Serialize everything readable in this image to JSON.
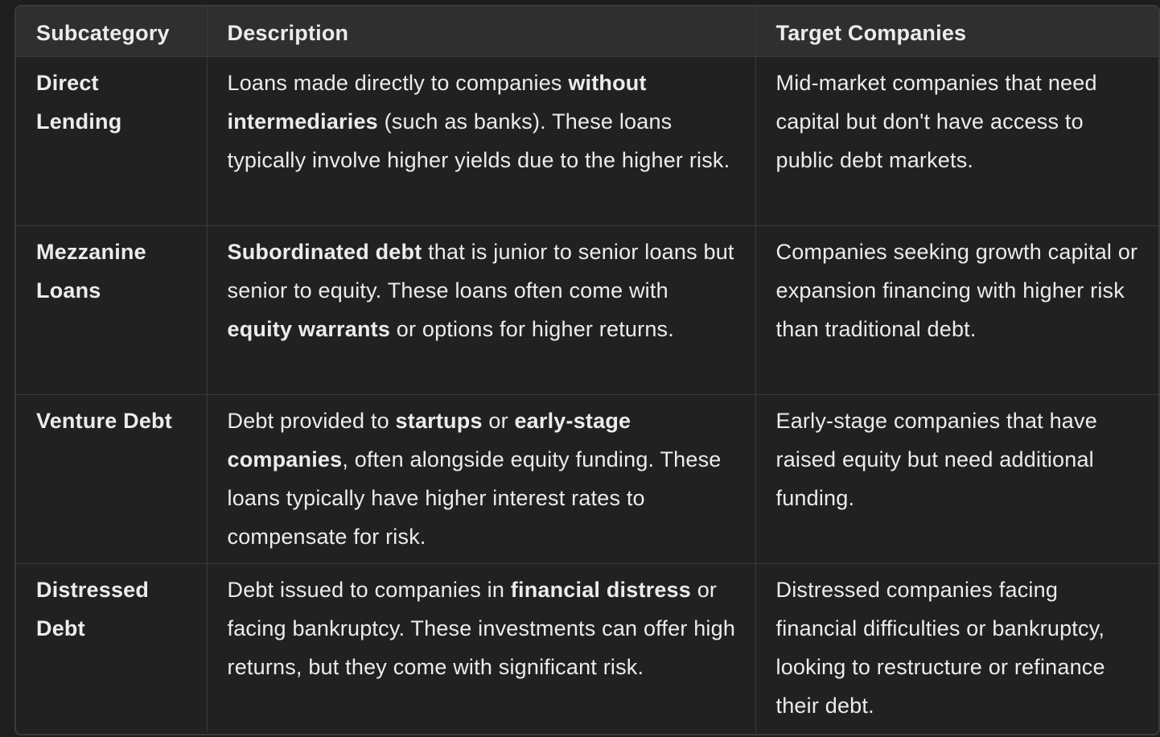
{
  "table": {
    "headers": [
      "Subcategory",
      "Description",
      "Target Companies"
    ],
    "rows": [
      {
        "subcategory": "Direct Lending",
        "description": [
          {
            "text": "Loans made directly to companies ",
            "bold": false
          },
          {
            "text": "without intermediaries",
            "bold": true
          },
          {
            "text": " (such as banks). These loans typically involve higher yields due to the higher risk.",
            "bold": false
          }
        ],
        "target": "Mid-market companies that need capital but don't have access to public debt markets."
      },
      {
        "subcategory": "Mezzanine Loans",
        "description": [
          {
            "text": "Subordinated debt",
            "bold": true
          },
          {
            "text": " that is junior to senior loans but senior to equity. These loans often come with ",
            "bold": false
          },
          {
            "text": "equity warrants",
            "bold": true
          },
          {
            "text": " or options for higher returns.",
            "bold": false
          }
        ],
        "target": "Companies seeking growth capital or expansion financing with higher risk than traditional debt."
      },
      {
        "subcategory": "Venture Debt",
        "description": [
          {
            "text": "Debt provided to ",
            "bold": false
          },
          {
            "text": "startups",
            "bold": true
          },
          {
            "text": " or ",
            "bold": false
          },
          {
            "text": "early-stage companies",
            "bold": true
          },
          {
            "text": ", often alongside equity funding. These loans typically have higher interest rates to compensate for risk.",
            "bold": false
          }
        ],
        "target": "Early-stage companies that have raised equity but need additional funding."
      },
      {
        "subcategory": "Distressed Debt",
        "description": [
          {
            "text": "Debt issued to companies in ",
            "bold": false
          },
          {
            "text": "financial distress",
            "bold": true
          },
          {
            "text": " or facing bankruptcy. These investments can offer high returns, but they come with significant risk.",
            "bold": false
          }
        ],
        "target": "Distressed companies facing financial difficulties or bankruptcy, looking to restructure or refinance their debt."
      }
    ]
  }
}
